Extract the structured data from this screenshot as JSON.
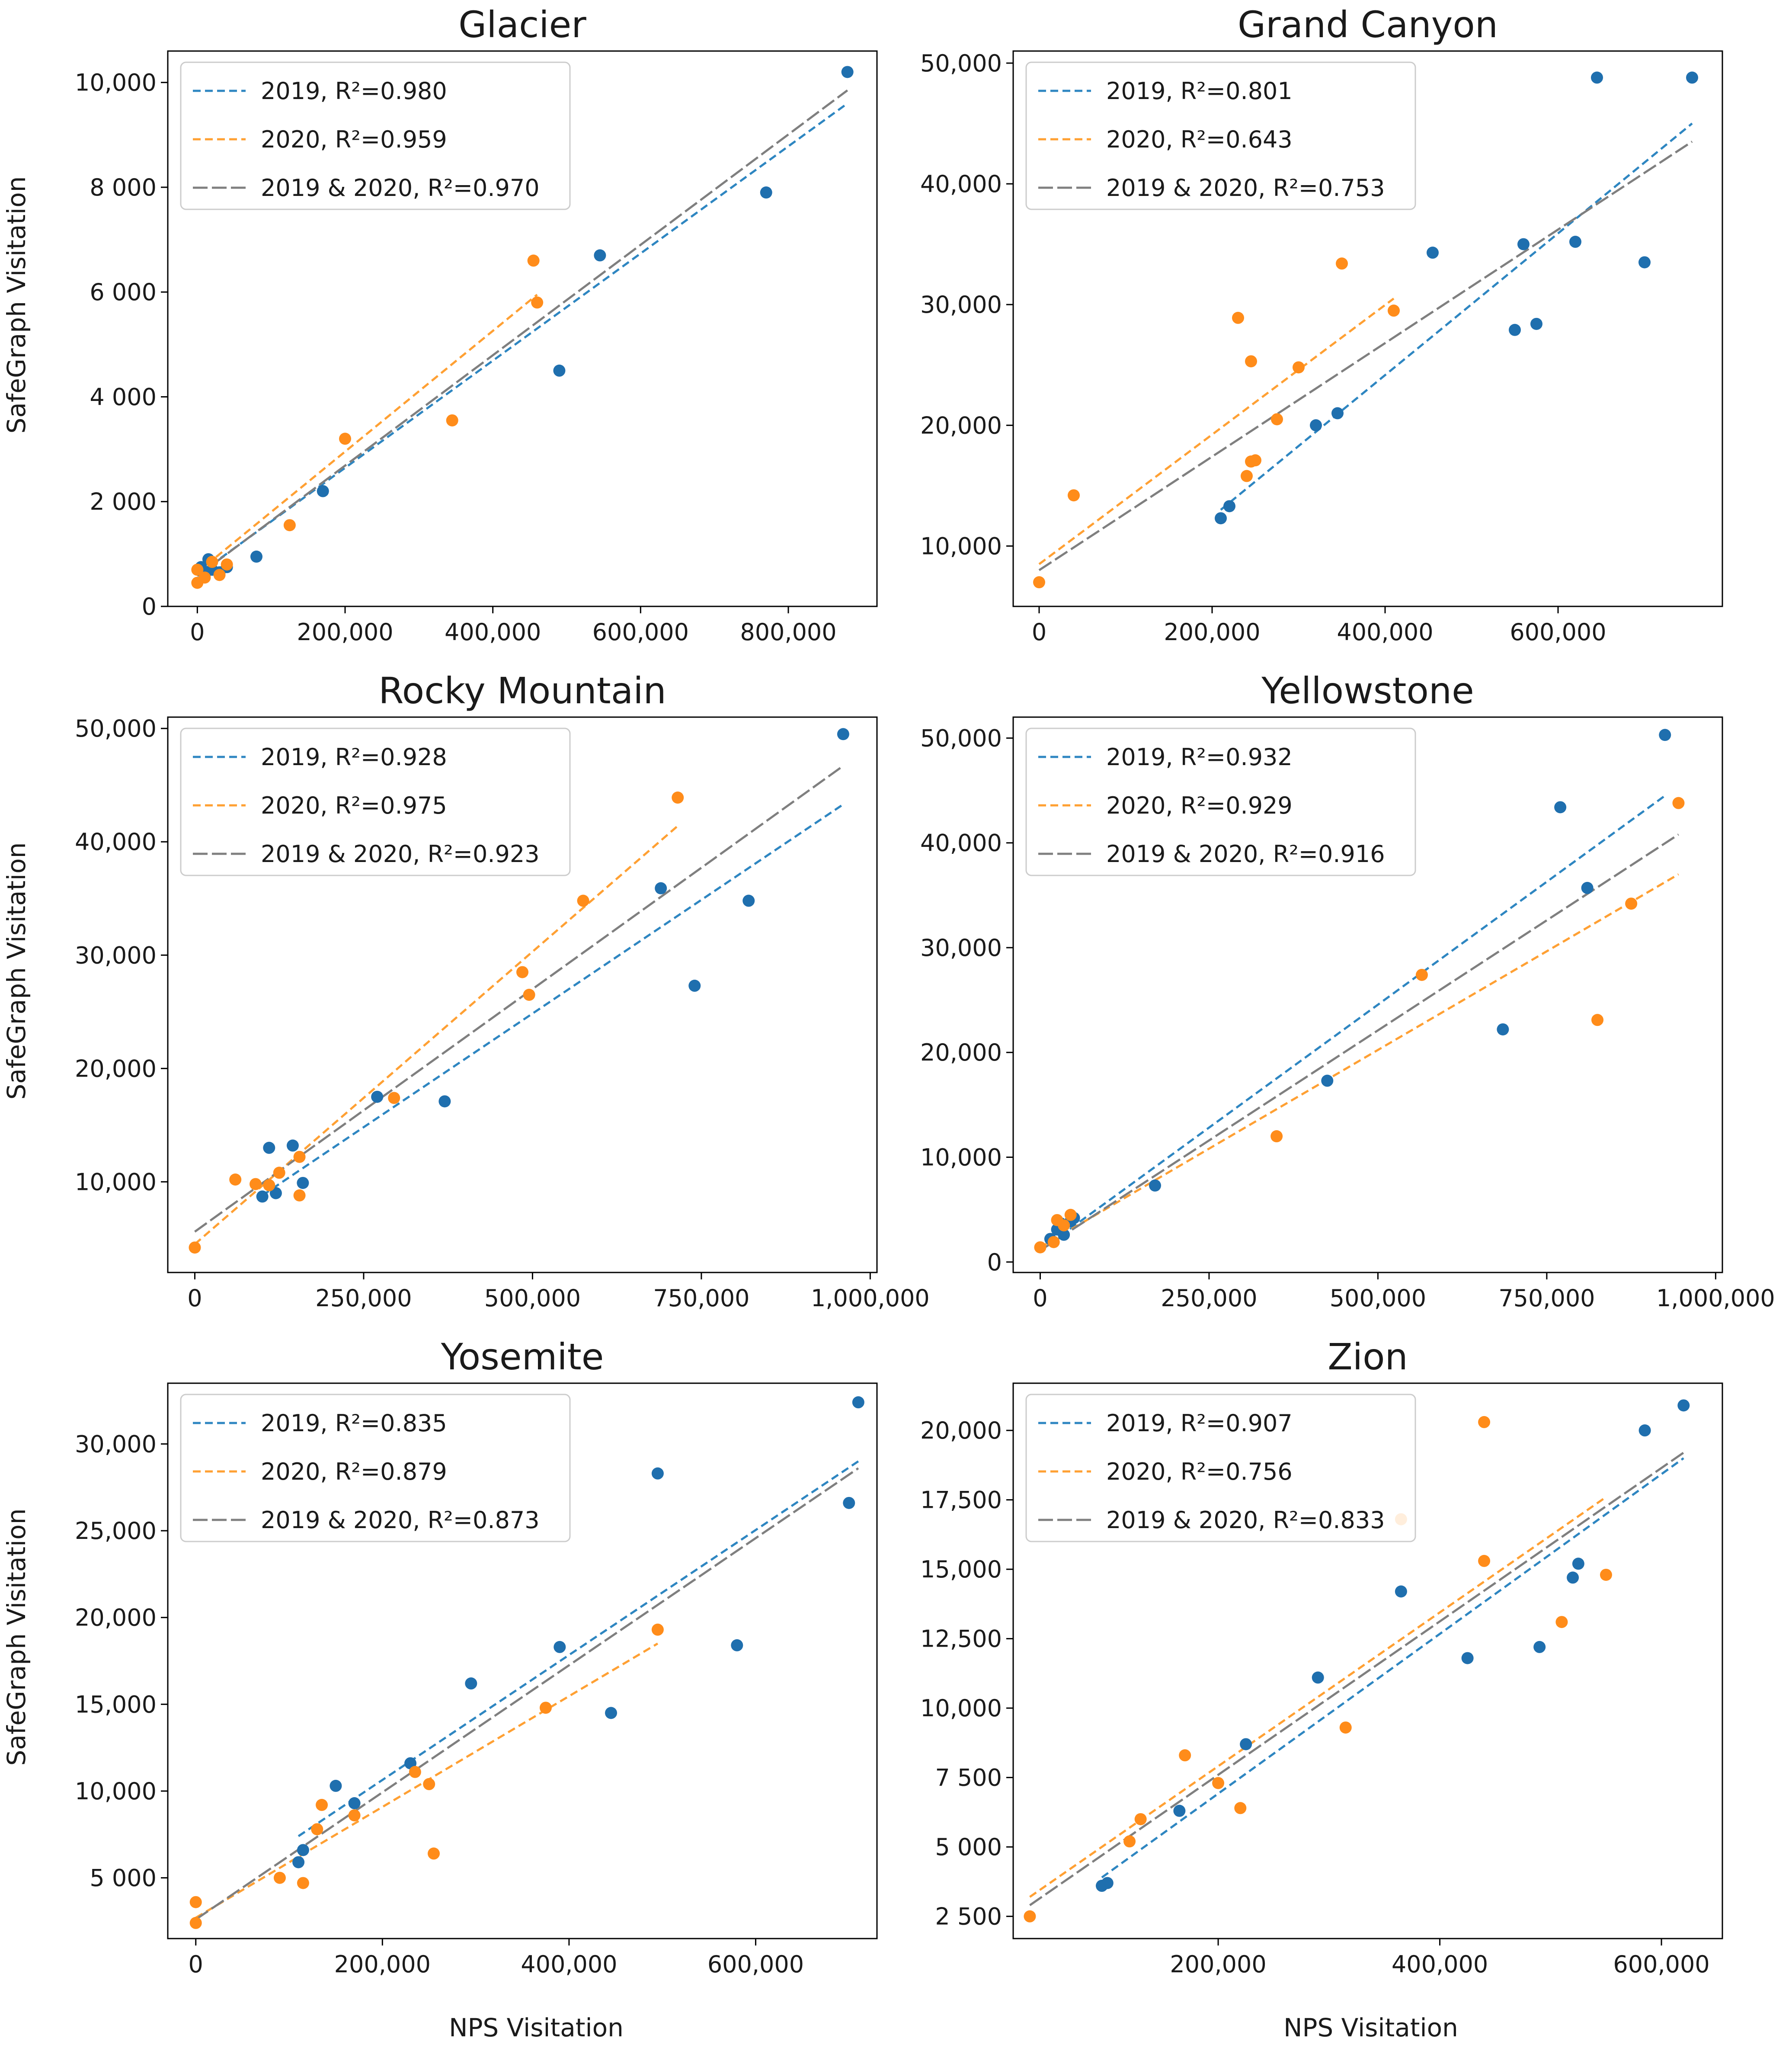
{
  "figure": {
    "ylabel": "SafeGraph Visitation",
    "xlabel": "NPS Visitation"
  },
  "colors": {
    "2019": "#1f6fae",
    "2020": "#ff8c1a",
    "fit_2019": "#2e86c1",
    "fit_2020": "#ffa033",
    "fit_both": "#7f7f7f"
  },
  "chart_data": [
    {
      "type": "scatter",
      "title": "Glacier",
      "xlim": [
        -40000,
        920000
      ],
      "ylim": [
        0,
        10600
      ],
      "xticks": [
        0,
        200000,
        400000,
        600000,
        800000
      ],
      "xtick_labels": [
        "0",
        "200,000",
        "400,000",
        "600,000",
        "800,000"
      ],
      "yticks": [
        0,
        2000,
        4000,
        6000,
        8000,
        10000
      ],
      "ytick_labels": [
        "0",
        "2 000",
        "4 000",
        "6 000",
        "8 000",
        "10,000"
      ],
      "legend": [
        "2019,  R²=0.980",
        "2020,  R²=0.959",
        "2019 & 2020,  R²=0.970"
      ],
      "series": [
        {
          "name": "2019",
          "points": [
            [
              5000,
              750
            ],
            [
              10000,
              600
            ],
            [
              15000,
              900
            ],
            [
              20000,
              700
            ],
            [
              30000,
              650
            ],
            [
              40000,
              750
            ],
            [
              80000,
              950
            ],
            [
              170000,
              2200
            ],
            [
              490000,
              4500
            ],
            [
              545000,
              6700
            ],
            [
              770000,
              7900
            ],
            [
              880000,
              10200
            ]
          ]
        },
        {
          "name": "2020",
          "points": [
            [
              0,
              450
            ],
            [
              0,
              700
            ],
            [
              10000,
              550
            ],
            [
              20000,
              850
            ],
            [
              30000,
              600
            ],
            [
              40000,
              800
            ],
            [
              125000,
              1550
            ],
            [
              200000,
              3200
            ],
            [
              345000,
              3550
            ],
            [
              455000,
              6600
            ],
            [
              460000,
              5800
            ]
          ]
        }
      ],
      "fits": [
        {
          "name": "2019",
          "x": [
            5000,
            880000
          ],
          "y": [
            650,
            9600
          ]
        },
        {
          "name": "2020",
          "x": [
            0,
            460000
          ],
          "y": [
            650,
            5950
          ]
        },
        {
          "name": "2019 & 2020",
          "x": [
            0,
            880000
          ],
          "y": [
            580,
            9850
          ]
        }
      ]
    },
    {
      "type": "scatter",
      "title": "Grand Canyon",
      "xlim": [
        -30000,
        790000
      ],
      "ylim": [
        5000,
        51000
      ],
      "xticks": [
        0,
        200000,
        400000,
        600000
      ],
      "xtick_labels": [
        "0",
        "200,000",
        "400,000",
        "600,000"
      ],
      "yticks": [
        10000,
        20000,
        30000,
        40000,
        50000
      ],
      "ytick_labels": [
        "10,000",
        "20,000",
        "30,000",
        "40,000",
        "50,000"
      ],
      "legend": [
        "2019,  R²=0.801",
        "2020,  R²=0.643",
        "2019 & 2020,  R²=0.753"
      ],
      "series": [
        {
          "name": "2019",
          "points": [
            [
              210000,
              12300
            ],
            [
              220000,
              13300
            ],
            [
              320000,
              20000
            ],
            [
              345000,
              21000
            ],
            [
              455000,
              34300
            ],
            [
              550000,
              27900
            ],
            [
              560000,
              35000
            ],
            [
              575000,
              28400
            ],
            [
              620000,
              35200
            ],
            [
              645000,
              48800
            ],
            [
              700000,
              33500
            ],
            [
              755000,
              48800
            ]
          ]
        },
        {
          "name": "2020",
          "points": [
            [
              0,
              7000
            ],
            [
              40000,
              14200
            ],
            [
              230000,
              28900
            ],
            [
              240000,
              15800
            ],
            [
              245000,
              17000
            ],
            [
              245000,
              25300
            ],
            [
              250000,
              17100
            ],
            [
              275000,
              20500
            ],
            [
              300000,
              24800
            ],
            [
              350000,
              33400
            ],
            [
              410000,
              29500
            ]
          ]
        }
      ],
      "fits": [
        {
          "name": "2019",
          "x": [
            210000,
            755000
          ],
          "y": [
            13000,
            45000
          ]
        },
        {
          "name": "2020",
          "x": [
            0,
            410000
          ],
          "y": [
            8500,
            30500
          ]
        },
        {
          "name": "2019 & 2020",
          "x": [
            0,
            755000
          ],
          "y": [
            8000,
            43500
          ]
        }
      ]
    },
    {
      "type": "scatter",
      "title": "Rocky Mountain",
      "xlim": [
        -40000,
        1010000
      ],
      "ylim": [
        2000,
        51000
      ],
      "xticks": [
        0,
        250000,
        500000,
        750000,
        1000000
      ],
      "xtick_labels": [
        "0",
        "250,000",
        "500,000",
        "750,000",
        "1,000,000"
      ],
      "yticks": [
        10000,
        20000,
        30000,
        40000,
        50000
      ],
      "ytick_labels": [
        "10,000",
        "20,000",
        "30,000",
        "40,000",
        "50,000"
      ],
      "legend": [
        "2019,  R²=0.928",
        "2020,  R²=0.975",
        "2019 & 2020,  R²=0.923"
      ],
      "series": [
        {
          "name": "2019",
          "points": [
            [
              100000,
              8700
            ],
            [
              110000,
              13000
            ],
            [
              120000,
              9000
            ],
            [
              145000,
              13200
            ],
            [
              160000,
              9900
            ],
            [
              270000,
              17500
            ],
            [
              370000,
              17100
            ],
            [
              690000,
              35900
            ],
            [
              740000,
              27300
            ],
            [
              820000,
              34800
            ],
            [
              960000,
              49500
            ]
          ]
        },
        {
          "name": "2020",
          "points": [
            [
              0,
              4200
            ],
            [
              60000,
              10200
            ],
            [
              90000,
              9800
            ],
            [
              110000,
              9700
            ],
            [
              125000,
              10800
            ],
            [
              155000,
              12200
            ],
            [
              155000,
              8800
            ],
            [
              295000,
              17400
            ],
            [
              485000,
              28500
            ],
            [
              495000,
              26500
            ],
            [
              575000,
              34800
            ],
            [
              715000,
              43900
            ]
          ]
        }
      ],
      "fits": [
        {
          "name": "2019",
          "x": [
            100000,
            960000
          ],
          "y": [
            8800,
            43300
          ]
        },
        {
          "name": "2020",
          "x": [
            0,
            715000
          ],
          "y": [
            4500,
            41400
          ]
        },
        {
          "name": "2019 & 2020",
          "x": [
            0,
            960000
          ],
          "y": [
            5600,
            46700
          ]
        }
      ]
    },
    {
      "type": "scatter",
      "title": "Yellowstone",
      "xlim": [
        -40000,
        1010000
      ],
      "ylim": [
        -1000,
        52000
      ],
      "xticks": [
        0,
        250000,
        500000,
        750000,
        1000000
      ],
      "xtick_labels": [
        "0",
        "250,000",
        "500,000",
        "750,000",
        "1,000,000"
      ],
      "yticks": [
        0,
        10000,
        20000,
        30000,
        40000,
        50000
      ],
      "ytick_labels": [
        "0",
        "10,000",
        "20,000",
        "30,000",
        "40,000",
        "50,000"
      ],
      "legend": [
        "2019,  R²=0.932",
        "2020,  R²=0.929",
        "2019 & 2020,  R²=0.916"
      ],
      "series": [
        {
          "name": "2019",
          "points": [
            [
              15000,
              2200
            ],
            [
              25000,
              3100
            ],
            [
              30000,
              3700
            ],
            [
              35000,
              2600
            ],
            [
              45000,
              3900
            ],
            [
              50000,
              4200
            ],
            [
              170000,
              7300
            ],
            [
              425000,
              17300
            ],
            [
              685000,
              22200
            ],
            [
              770000,
              43400
            ],
            [
              810000,
              35700
            ],
            [
              925000,
              50300
            ]
          ]
        },
        {
          "name": "2020",
          "points": [
            [
              0,
              1400
            ],
            [
              20000,
              1900
            ],
            [
              25000,
              4000
            ],
            [
              35000,
              3500
            ],
            [
              45000,
              4500
            ],
            [
              350000,
              12000
            ],
            [
              565000,
              27400
            ],
            [
              825000,
              23100
            ],
            [
              875000,
              34200
            ],
            [
              945000,
              43800
            ]
          ]
        }
      ],
      "fits": [
        {
          "name": "2019",
          "x": [
            15000,
            925000
          ],
          "y": [
            1800,
            44500
          ]
        },
        {
          "name": "2020",
          "x": [
            0,
            945000
          ],
          "y": [
            1400,
            37000
          ]
        },
        {
          "name": "2019 & 2020",
          "x": [
            0,
            945000
          ],
          "y": [
            1100,
            40800
          ]
        }
      ]
    },
    {
      "type": "scatter",
      "title": "Yosemite",
      "xlim": [
        -30000,
        730000
      ],
      "ylim": [
        1500,
        33500
      ],
      "xticks": [
        0,
        200000,
        400000,
        600000
      ],
      "xtick_labels": [
        "0",
        "200,000",
        "400,000",
        "600,000"
      ],
      "yticks": [
        5000,
        10000,
        15000,
        20000,
        25000,
        30000
      ],
      "ytick_labels": [
        "5 000",
        "10,000",
        "15,000",
        "20,000",
        "25,000",
        "30,000"
      ],
      "legend": [
        "2019,  R²=0.835",
        "2020,  R²=0.879",
        "2019 & 2020,  R²=0.873"
      ],
      "series": [
        {
          "name": "2019",
          "points": [
            [
              110000,
              5900
            ],
            [
              115000,
              6600
            ],
            [
              150000,
              10300
            ],
            [
              170000,
              9300
            ],
            [
              230000,
              11600
            ],
            [
              295000,
              16200
            ],
            [
              390000,
              18300
            ],
            [
              445000,
              14500
            ],
            [
              495000,
              28300
            ],
            [
              580000,
              18400
            ],
            [
              700000,
              26600
            ],
            [
              710000,
              32400
            ]
          ]
        },
        {
          "name": "2020",
          "points": [
            [
              0,
              2400
            ],
            [
              0,
              3600
            ],
            [
              90000,
              5000
            ],
            [
              115000,
              4700
            ],
            [
              130000,
              7800
            ],
            [
              135000,
              9200
            ],
            [
              170000,
              8600
            ],
            [
              235000,
              11100
            ],
            [
              250000,
              10400
            ],
            [
              255000,
              6400
            ],
            [
              375000,
              14800
            ],
            [
              495000,
              19300
            ]
          ]
        }
      ],
      "fits": [
        {
          "name": "2019",
          "x": [
            110000,
            710000
          ],
          "y": [
            7400,
            29000
          ]
        },
        {
          "name": "2020",
          "x": [
            0,
            495000
          ],
          "y": [
            2700,
            18500
          ]
        },
        {
          "name": "2019 & 2020",
          "x": [
            0,
            710000
          ],
          "y": [
            2600,
            28600
          ]
        }
      ]
    },
    {
      "type": "scatter",
      "title": "Zion",
      "xlim": [
        15000,
        655000
      ],
      "ylim": [
        1700,
        21700
      ],
      "xticks": [
        200000,
        400000,
        600000
      ],
      "xtick_labels": [
        "200,000",
        "400,000",
        "600,000"
      ],
      "yticks": [
        2500,
        5000,
        7500,
        10000,
        12500,
        15000,
        17500,
        20000
      ],
      "ytick_labels": [
        "2 500",
        "5 000",
        "7 500",
        "10,000",
        "12,500",
        "15,000",
        "17,500",
        "20,000"
      ],
      "legend": [
        "2019,  R²=0.907",
        "2020,  R²=0.756",
        "2019 & 2020,  R²=0.833"
      ],
      "series": [
        {
          "name": "2019",
          "points": [
            [
              95000,
              3600
            ],
            [
              100000,
              3700
            ],
            [
              165000,
              6300
            ],
            [
              225000,
              8700
            ],
            [
              290000,
              11100
            ],
            [
              365000,
              14200
            ],
            [
              425000,
              11800
            ],
            [
              490000,
              12200
            ],
            [
              520000,
              14700
            ],
            [
              525000,
              15200
            ],
            [
              585000,
              20000
            ],
            [
              620000,
              20900
            ]
          ]
        },
        {
          "name": "2020",
          "points": [
            [
              30000,
              2500
            ],
            [
              120000,
              5200
            ],
            [
              130000,
              6000
            ],
            [
              170000,
              8300
            ],
            [
              200000,
              7300
            ],
            [
              220000,
              6400
            ],
            [
              315000,
              9300
            ],
            [
              365000,
              16800
            ],
            [
              440000,
              20300
            ],
            [
              440000,
              15300
            ],
            [
              510000,
              13100
            ],
            [
              550000,
              14800
            ]
          ]
        }
      ],
      "fits": [
        {
          "name": "2019",
          "x": [
            95000,
            620000
          ],
          "y": [
            3900,
            19000
          ]
        },
        {
          "name": "2020",
          "x": [
            30000,
            550000
          ],
          "y": [
            3200,
            17600
          ]
        },
        {
          "name": "2019 & 2020",
          "x": [
            30000,
            620000
          ],
          "y": [
            2900,
            19200
          ]
        }
      ]
    }
  ]
}
